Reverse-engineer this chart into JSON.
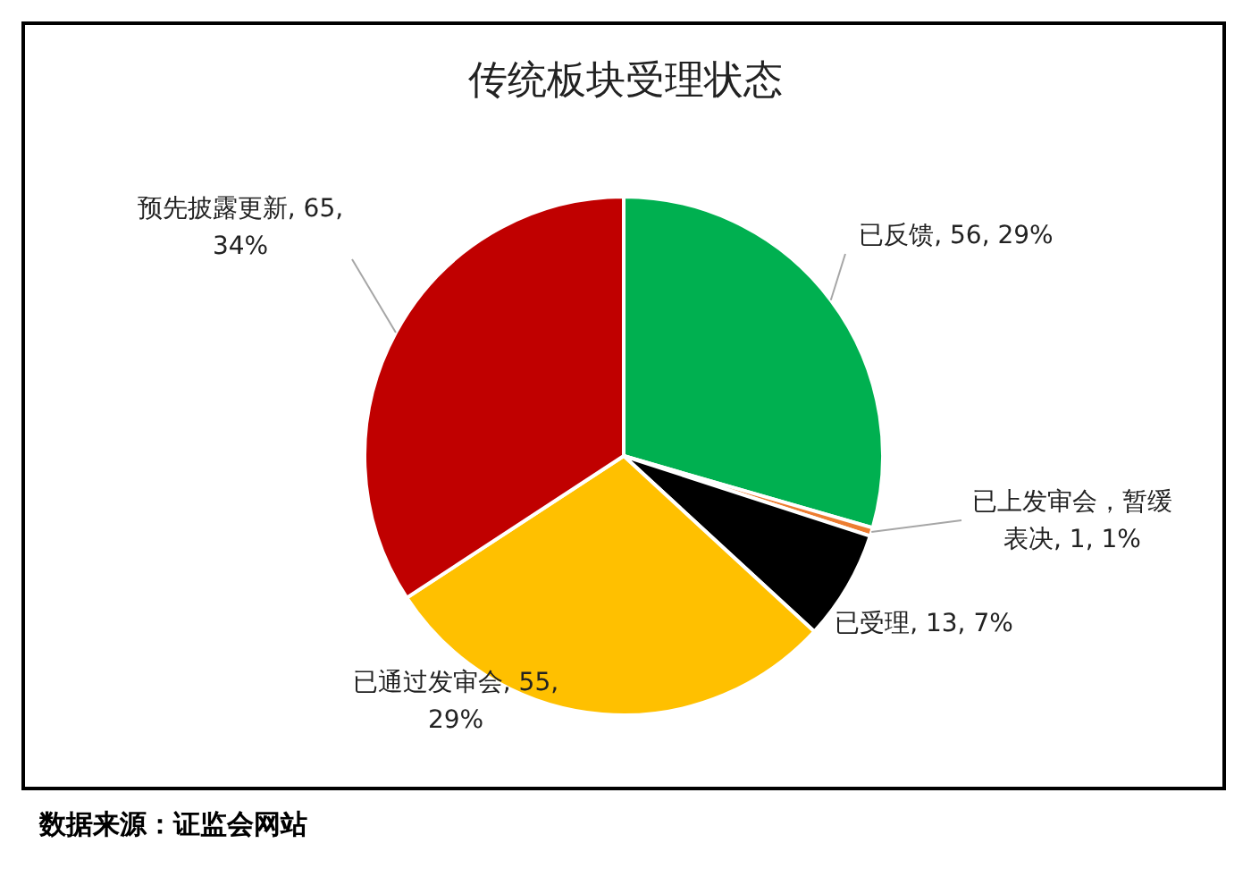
{
  "chart_data": {
    "type": "pie",
    "title": "传统板块受理状态",
    "categories": [
      "已反馈",
      "已上发审会，暂缓表决",
      "已受理",
      "已通过发审会",
      "预先披露更新"
    ],
    "values": [
      56,
      1,
      13,
      55,
      65
    ],
    "colors": [
      "#00b050",
      "#ed7d31",
      "#000000",
      "#ffc000",
      "#c00000"
    ],
    "value_labels": [
      "56, 29%",
      "1, 1%",
      "13, 7%",
      "55, 29%",
      "65, 34%"
    ],
    "annotations": [
      "数据来源：证监会网站"
    ]
  }
}
